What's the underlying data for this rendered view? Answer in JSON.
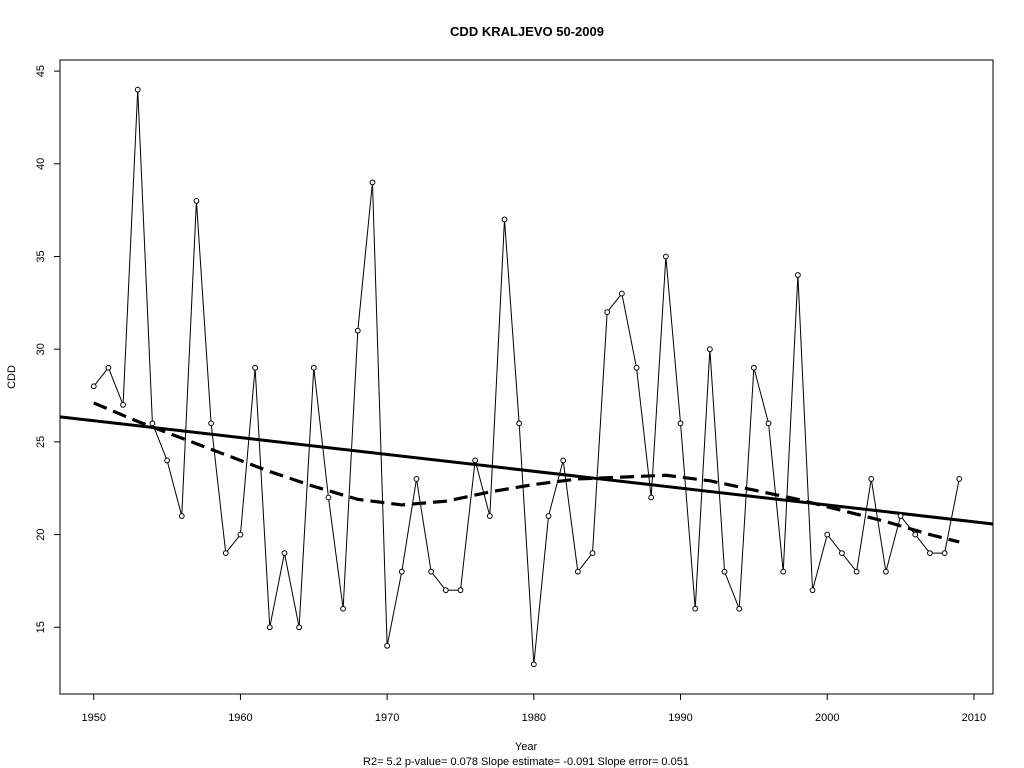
{
  "chart_data": {
    "type": "line",
    "title": "CDD   KRALJEVO 50-2009",
    "xlabel": "Year",
    "ylabel": "CDD",
    "subtitle": "R2= 5.2  p-value= 0.078  Slope estimate= -0.091  Slope error= 0.051",
    "xlim": [
      1947.7,
      2011.3
    ],
    "ylim": [
      11.4,
      45.6
    ],
    "xticks": [
      1950,
      1960,
      1970,
      1980,
      1990,
      2000,
      2010
    ],
    "yticks": [
      15,
      20,
      25,
      30,
      35,
      40,
      45
    ],
    "grid": false,
    "series": [
      {
        "style": "thin-line-with-open-circles",
        "x": [
          1950,
          1951,
          1952,
          1953,
          1954,
          1955,
          1956,
          1957,
          1958,
          1959,
          1960,
          1961,
          1962,
          1963,
          1964,
          1965,
          1966,
          1967,
          1968,
          1969,
          1970,
          1971,
          1972,
          1973,
          1974,
          1975,
          1976,
          1977,
          1978,
          1979,
          1980,
          1981,
          1982,
          1983,
          1984,
          1985,
          1986,
          1987,
          1988,
          1989,
          1990,
          1991,
          1992,
          1993,
          1994,
          1995,
          1996,
          1997,
          1998,
          1999,
          2000,
          2001,
          2002,
          2003,
          2004,
          2005,
          2006,
          2007,
          2008,
          2009
        ],
        "y": [
          28,
          29,
          27,
          44,
          26,
          24,
          21,
          38,
          26,
          19,
          20,
          29,
          15,
          19,
          15,
          29,
          22,
          16,
          31,
          39,
          14,
          18,
          23,
          18,
          17,
          17,
          24,
          21,
          37,
          26,
          13,
          21,
          24,
          18,
          19,
          32,
          33,
          29,
          22,
          35,
          26,
          16,
          30,
          18,
          16,
          29,
          26,
          18,
          34,
          17,
          20,
          19,
          18,
          23,
          18,
          21,
          20,
          19,
          19,
          23
        ]
      },
      {
        "style": "thick-solid-trend",
        "x": [
          1947.7,
          2011.3
        ],
        "y": [
          26.35,
          20.57
        ]
      },
      {
        "style": "thick-dashed-smooth",
        "x": [
          1950,
          1953,
          1956,
          1959,
          1962,
          1965,
          1968,
          1971,
          1974,
          1977,
          1980,
          1983,
          1986,
          1989,
          1992,
          1995,
          1998,
          2001,
          2004,
          2007,
          2009
        ],
        "y": [
          27.1,
          26.1,
          25.2,
          24.3,
          23.4,
          22.6,
          21.9,
          21.6,
          21.8,
          22.3,
          22.7,
          23.0,
          23.1,
          23.2,
          22.9,
          22.4,
          21.9,
          21.3,
          20.7,
          20.0,
          19.6
        ]
      }
    ]
  }
}
